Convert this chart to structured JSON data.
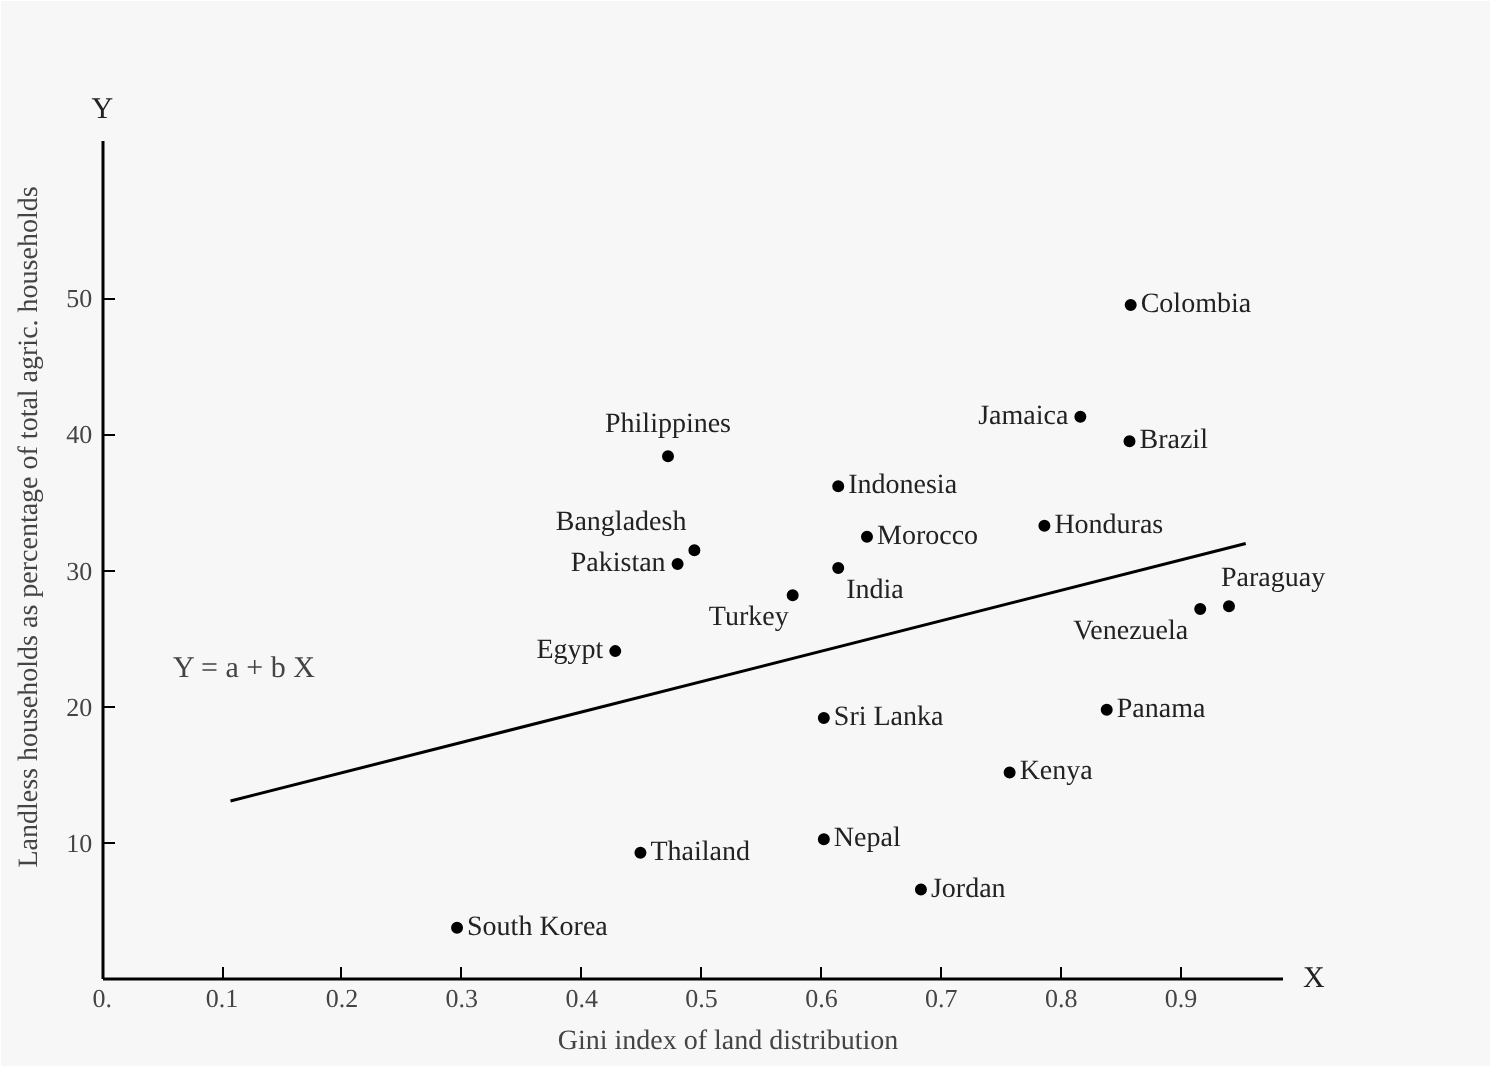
{
  "chart_data": {
    "type": "scatter",
    "xlabel": "Gini index of land distribution",
    "ylabel": "Landless households as percentage of total agric. households",
    "xlim": [
      0,
      0.985
    ],
    "ylim": [
      0,
      61.5
    ],
    "xticks": [
      {
        "value": 0,
        "label": "0."
      },
      0.1,
      0.2,
      0.3,
      0.4,
      0.5,
      0.6,
      0.7,
      0.8,
      0.9
    ],
    "yticks": [
      10,
      20,
      30,
      40,
      50
    ],
    "grid": false,
    "marker": "circle",
    "annotations": [
      "Y",
      "X",
      "Y = a + b X"
    ],
    "series": [
      {
        "name": "Colombia",
        "color": "#000000",
        "x": [
          0.858
        ],
        "values": [
          49.5
        ]
      },
      {
        "name": "Jamaica",
        "color": "#000000",
        "x": [
          0.816
        ],
        "values": [
          41.3
        ]
      },
      {
        "name": "Brazil",
        "color": "#000000",
        "x": [
          0.857
        ],
        "values": [
          39.5
        ]
      },
      {
        "name": "Philippines",
        "color": "#000000",
        "x": [
          0.472
        ],
        "values": [
          38.4
        ]
      },
      {
        "name": "Indonesia",
        "color": "#000000",
        "x": [
          0.614
        ],
        "values": [
          36.2
        ]
      },
      {
        "name": "Honduras",
        "color": "#000000",
        "x": [
          0.786
        ],
        "values": [
          33.3
        ]
      },
      {
        "name": "Morocco",
        "color": "#000000",
        "x": [
          0.638
        ],
        "values": [
          32.5
        ]
      },
      {
        "name": "Bangladesh",
        "color": "#000000",
        "x": [
          0.494
        ],
        "values": [
          31.5
        ]
      },
      {
        "name": "Pakistan",
        "color": "#000000",
        "x": [
          0.48
        ],
        "values": [
          30.5
        ]
      },
      {
        "name": "India",
        "color": "#000000",
        "x": [
          0.614
        ],
        "values": [
          30.2
        ]
      },
      {
        "name": "Turkey",
        "color": "#000000",
        "x": [
          0.576
        ],
        "values": [
          28.2
        ]
      },
      {
        "name": "Paraguay",
        "color": "#000000",
        "x": [
          0.94
        ],
        "values": [
          27.4
        ]
      },
      {
        "name": "Venezuela",
        "color": "#000000",
        "x": [
          0.916
        ],
        "values": [
          27.2
        ]
      },
      {
        "name": "Egypt",
        "color": "#000000",
        "x": [
          0.428
        ],
        "values": [
          24.1
        ]
      },
      {
        "name": "Panama",
        "color": "#000000",
        "x": [
          0.838
        ],
        "values": [
          19.8
        ]
      },
      {
        "name": "Sri Lanka",
        "color": "#000000",
        "x": [
          0.602
        ],
        "values": [
          19.2
        ]
      },
      {
        "name": "Kenya",
        "color": "#000000",
        "x": [
          0.757
        ],
        "values": [
          15.2
        ]
      },
      {
        "name": "Nepal",
        "color": "#000000",
        "x": [
          0.602
        ],
        "values": [
          10.3
        ]
      },
      {
        "name": "Thailand",
        "color": "#000000",
        "x": [
          0.449
        ],
        "values": [
          9.3
        ]
      },
      {
        "name": "Jordan",
        "color": "#000000",
        "x": [
          0.683
        ],
        "values": [
          6.6
        ]
      },
      {
        "name": "South Korea",
        "color": "#000000",
        "x": [
          0.296
        ],
        "values": [
          3.8
        ]
      },
      {
        "type": "line",
        "marker": "none",
        "color": "#000000",
        "x": [
          0.107,
          0.954
        ],
        "values": [
          13.1,
          32.0
        ]
      }
    ]
  }
}
